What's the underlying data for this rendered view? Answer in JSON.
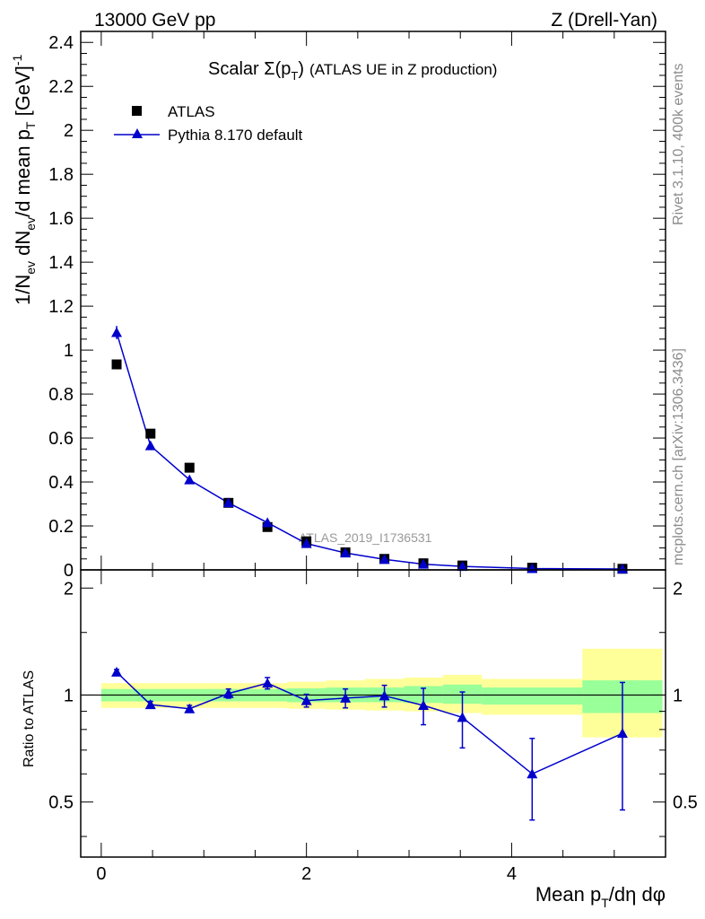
{
  "header": {
    "energy": "13000 GeV pp",
    "process": "Z (Drell-Yan)"
  },
  "side_labels": {
    "rivet": "Rivet 3.1.10,  400k events",
    "mcplots": "mcplots.cern.ch [arXiv:1306.3436]"
  },
  "colors": {
    "mc": "#0000cc",
    "data": "#000000",
    "band_inner": "#99ff99",
    "band_outer": "#ffff99"
  },
  "chart_data": [
    {
      "type": "scatter",
      "title": "Scalar Σ(p_T) (ATLAS UE in Z production)",
      "title_parts": {
        "lead": "Scalar ",
        "sigma": "Σ(p",
        "sub": "T",
        "close": ")",
        "rest": "(ATLAS UE in Z production)"
      },
      "ylabel": "1/N_ev dN_ev/d mean p_T [GeV]^-1",
      "ylabel_parts": {
        "a": "1/N",
        "b": "ev",
        "c": " dN",
        "d": "ev",
        "e": "/d mean p",
        "f": "T",
        "g": " [GeV]",
        "h": "-1"
      },
      "watermark": "ATLAS_2019_I1736531",
      "xlim": [
        -0.2,
        5.5
      ],
      "ylim": [
        0,
        2.45
      ],
      "yticks": [
        0,
        0.2,
        0.4,
        0.6,
        0.8,
        1,
        1.2,
        1.4,
        1.6,
        1.8,
        2,
        2.2,
        2.4
      ],
      "ytick_labels": [
        "0",
        "0.2",
        "0.4",
        "0.6",
        "0.8",
        "1",
        "1.2",
        "1.4",
        "1.6",
        "1.8",
        "2",
        "2.2",
        "2.4"
      ],
      "legend_position": "top-left",
      "series": [
        {
          "name": "ATLAS",
          "marker": "square",
          "x": [
            0.15,
            0.48,
            0.86,
            1.24,
            1.62,
            2.0,
            2.38,
            2.76,
            3.14,
            3.52,
            4.2,
            5.08
          ],
          "y": [
            0.935,
            0.62,
            0.465,
            0.305,
            0.195,
            0.13,
            0.08,
            0.05,
            0.03,
            0.02,
            0.01,
            0.005
          ]
        },
        {
          "name": "Pythia 8.170 default",
          "marker": "triangle",
          "x": [
            0.15,
            0.48,
            0.86,
            1.24,
            1.62,
            2.0,
            2.38,
            2.76,
            3.14,
            3.52,
            4.2,
            5.08
          ],
          "y": [
            1.08,
            0.565,
            0.41,
            0.305,
            0.215,
            0.12,
            0.077,
            0.048,
            0.026,
            0.016,
            0.006,
            0.004
          ],
          "yerr": [
            0.03,
            0.015,
            0.012,
            0.01,
            0.01,
            0.006,
            0.005,
            0.004,
            0.003,
            0.003,
            0.002,
            0.002
          ]
        }
      ]
    },
    {
      "type": "line",
      "ylabel": "Ratio to ATLAS",
      "xlabel": "Mean p_T/dη dφ",
      "xlabel_parts": {
        "a": "Mean p",
        "b": "T",
        "c": "/dη dφ"
      },
      "xlim": [
        -0.2,
        5.5
      ],
      "ylim": [
        0.35,
        2.25
      ],
      "xticks": [
        0,
        2,
        4
      ],
      "xtick_labels": [
        "0",
        "2",
        "4"
      ],
      "yticks": [
        0.5,
        1,
        2
      ],
      "ytick_labels": [
        "0.5",
        "1",
        "2"
      ],
      "bands": [
        {
          "x0": 0.0,
          "x1": 0.3,
          "inner": [
            0.96,
            1.04
          ],
          "outer": [
            0.92,
            1.08
          ]
        },
        {
          "x0": 0.3,
          "x1": 0.67,
          "inner": [
            0.96,
            1.04
          ],
          "outer": [
            0.92,
            1.08
          ]
        },
        {
          "x0": 0.67,
          "x1": 1.05,
          "inner": [
            0.96,
            1.04
          ],
          "outer": [
            0.92,
            1.08
          ]
        },
        {
          "x0": 1.05,
          "x1": 1.43,
          "inner": [
            0.96,
            1.04
          ],
          "outer": [
            0.92,
            1.08
          ]
        },
        {
          "x0": 1.43,
          "x1": 1.81,
          "inner": [
            0.96,
            1.04
          ],
          "outer": [
            0.92,
            1.08
          ]
        },
        {
          "x0": 1.81,
          "x1": 2.19,
          "inner": [
            0.955,
            1.045
          ],
          "outer": [
            0.915,
            1.09
          ]
        },
        {
          "x0": 2.19,
          "x1": 2.57,
          "inner": [
            0.955,
            1.05
          ],
          "outer": [
            0.91,
            1.1
          ]
        },
        {
          "x0": 2.57,
          "x1": 2.95,
          "inner": [
            0.955,
            1.05
          ],
          "outer": [
            0.905,
            1.11
          ]
        },
        {
          "x0": 2.95,
          "x1": 3.33,
          "inner": [
            0.95,
            1.06
          ],
          "outer": [
            0.9,
            1.12
          ]
        },
        {
          "x0": 3.33,
          "x1": 3.71,
          "inner": [
            0.945,
            1.07
          ],
          "outer": [
            0.89,
            1.14
          ]
        },
        {
          "x0": 3.71,
          "x1": 4.69,
          "inner": [
            0.94,
            1.05
          ],
          "outer": [
            0.88,
            1.11
          ]
        },
        {
          "x0": 4.69,
          "x1": 5.47,
          "inner": [
            0.89,
            1.1
          ],
          "outer": [
            0.76,
            1.35
          ]
        }
      ],
      "series": [
        {
          "name": "Pythia 8.170 default / ATLAS",
          "x": [
            0.15,
            0.48,
            0.86,
            1.24,
            1.62,
            2.0,
            2.38,
            2.76,
            3.14,
            3.52,
            4.2,
            5.08
          ],
          "y": [
            1.16,
            0.94,
            0.915,
            1.01,
            1.08,
            0.965,
            0.98,
            0.995,
            0.935,
            0.865,
            0.6,
            0.78
          ],
          "yerr_low": [
            0.02,
            0.02,
            0.02,
            0.03,
            0.04,
            0.04,
            0.06,
            0.07,
            0.11,
            0.155,
            0.155,
            0.305
          ],
          "yerr_high": [
            0.02,
            0.02,
            0.02,
            0.03,
            0.04,
            0.04,
            0.06,
            0.07,
            0.11,
            0.155,
            0.155,
            0.305
          ]
        }
      ]
    }
  ]
}
